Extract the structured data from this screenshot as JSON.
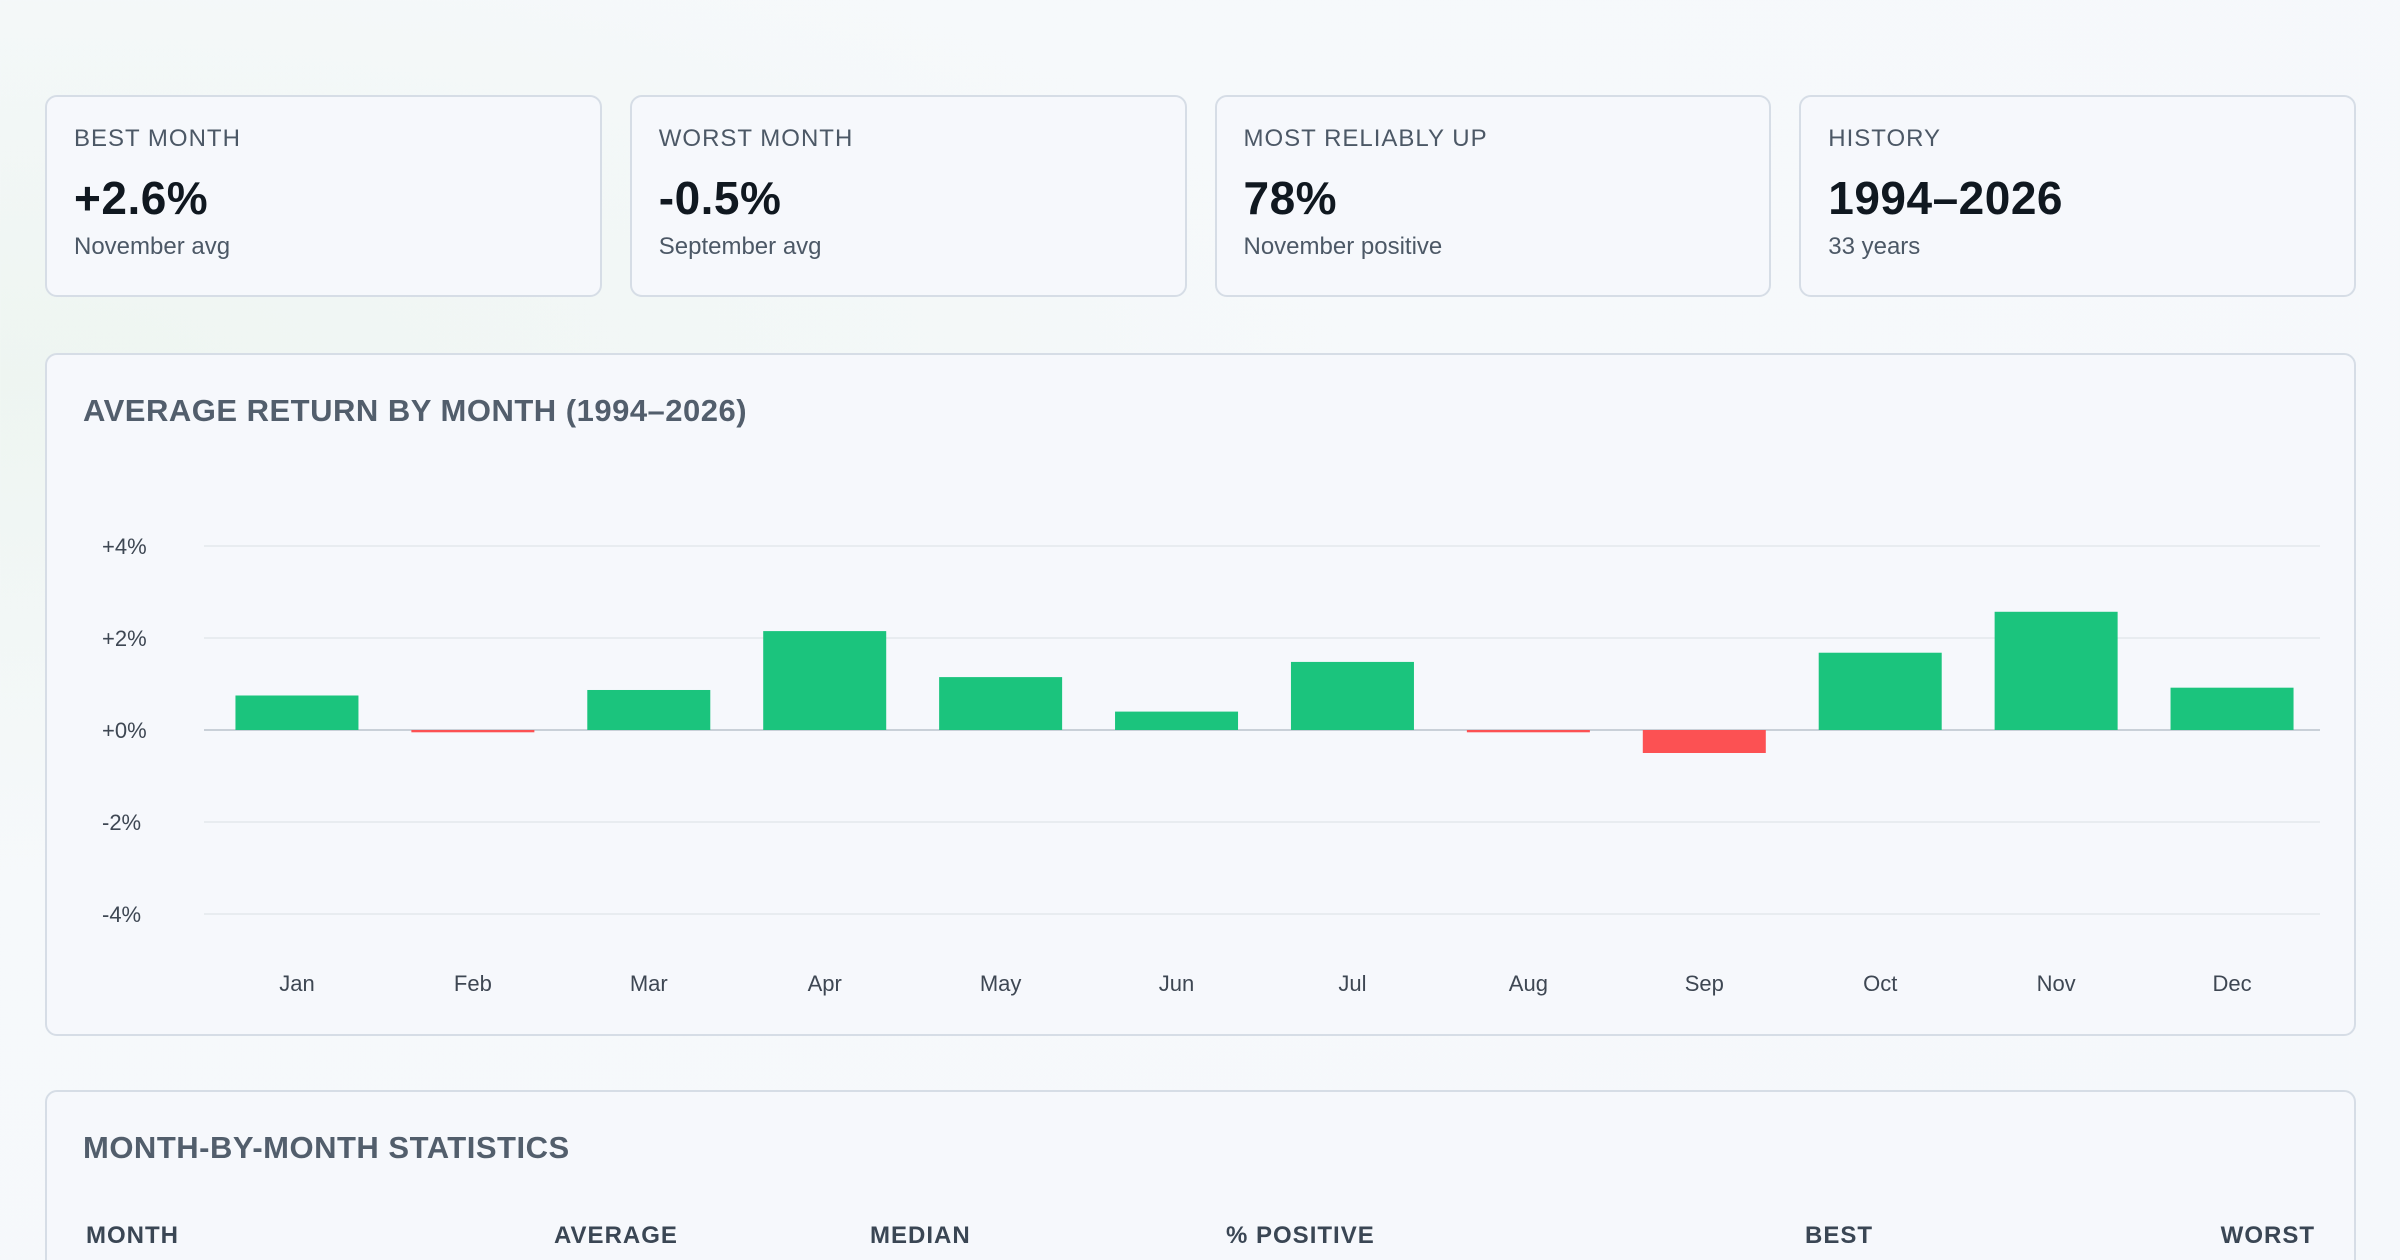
{
  "stats": [
    {
      "label": "BEST MONTH",
      "value": "+2.6%",
      "sub": "November avg"
    },
    {
      "label": "WORST MONTH",
      "value": "-0.5%",
      "sub": "September avg"
    },
    {
      "label": "MOST RELIABLY UP",
      "value": "78%",
      "sub": "November positive"
    },
    {
      "label": "HISTORY",
      "value": "1994–2026",
      "sub": "33 years"
    }
  ],
  "chart_panel": {
    "title": "AVERAGE RETURN BY MONTH (1994–2026)"
  },
  "chart_data": {
    "type": "bar",
    "title": "AVERAGE RETURN BY MONTH (1994–2026)",
    "categories": [
      "Jan",
      "Feb",
      "Mar",
      "Apr",
      "May",
      "Jun",
      "Jul",
      "Aug",
      "Sep",
      "Oct",
      "Nov",
      "Dec"
    ],
    "values": [
      0.75,
      -0.05,
      0.87,
      2.15,
      1.15,
      0.4,
      1.48,
      -0.05,
      -0.5,
      1.68,
      2.57,
      0.92
    ],
    "y_ticks": [
      "+4%",
      "+2%",
      "+0%",
      "-2%",
      "-4%"
    ],
    "y_tick_values": [
      4,
      2,
      0,
      -2,
      -4
    ],
    "ylim": [
      -4,
      4
    ],
    "xlabel": "",
    "ylabel": "",
    "grid": true,
    "positive_color": "#1bc47d",
    "negative_color": "#fc5153"
  },
  "table": {
    "title": "MONTH-BY-MONTH STATISTICS",
    "columns": [
      "MONTH",
      "AVERAGE",
      "MEDIAN",
      "% POSITIVE",
      "BEST",
      "WORST"
    ]
  }
}
